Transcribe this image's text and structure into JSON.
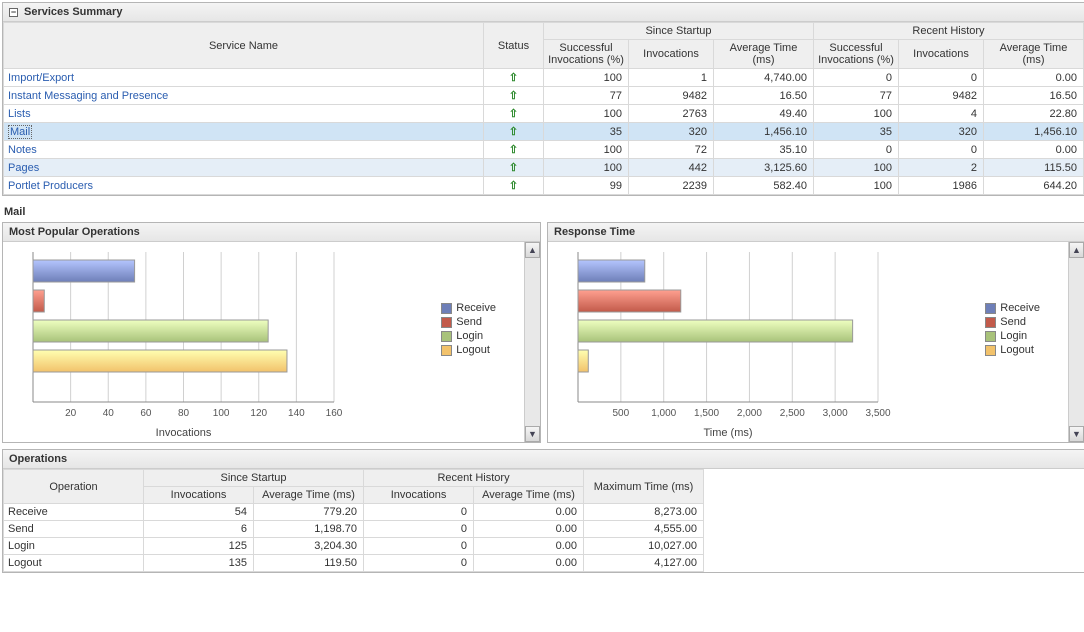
{
  "summary": {
    "title": "Services Summary",
    "columns": {
      "service_name": "Service Name",
      "status": "Status",
      "since_startup": "Since Startup",
      "recent_history": "Recent History",
      "successful_pct": "Successful Invocations (%)",
      "invocations": "Invocations",
      "avg_time": "Average Time (ms)"
    },
    "rows": [
      {
        "name": "Import/Export",
        "highlight": false,
        "ss_pct": "100",
        "ss_inv": "1",
        "ss_avg": "4,740.00",
        "rh_pct": "0",
        "rh_inv": "0",
        "rh_avg": "0.00"
      },
      {
        "name": "Instant Messaging and Presence",
        "highlight": false,
        "ss_pct": "77",
        "ss_inv": "9482",
        "ss_avg": "16.50",
        "rh_pct": "77",
        "rh_inv": "9482",
        "rh_avg": "16.50"
      },
      {
        "name": "Lists",
        "highlight": false,
        "ss_pct": "100",
        "ss_inv": "2763",
        "ss_avg": "49.40",
        "rh_pct": "100",
        "rh_inv": "4",
        "rh_avg": "22.80"
      },
      {
        "name": "Mail",
        "highlight": true,
        "selected": true,
        "ss_pct": "35",
        "ss_inv": "320",
        "ss_avg": "1,456.10",
        "rh_pct": "35",
        "rh_inv": "320",
        "rh_avg": "1,456.10"
      },
      {
        "name": "Notes",
        "highlight": false,
        "ss_pct": "100",
        "ss_inv": "72",
        "ss_avg": "35.10",
        "rh_pct": "0",
        "rh_inv": "0",
        "rh_avg": "0.00"
      },
      {
        "name": "Pages",
        "highlight": true,
        "ss_pct": "100",
        "ss_inv": "442",
        "ss_avg": "3,125.60",
        "rh_pct": "100",
        "rh_inv": "2",
        "rh_avg": "115.50"
      },
      {
        "name": "Portlet Producers",
        "highlight": false,
        "ss_pct": "99",
        "ss_inv": "2239",
        "ss_avg": "582.40",
        "rh_pct": "100",
        "rh_inv": "1986",
        "rh_avg": "644.20"
      }
    ]
  },
  "detail_title": "Mail",
  "colors": {
    "receive": "#6e7fb8",
    "send": "#c25a4a",
    "login": "#a8c27a",
    "logout": "#f2c26b",
    "grid": "#d0d0d0",
    "axis": "#888"
  },
  "legend": [
    {
      "key": "receive",
      "label": "Receive"
    },
    {
      "key": "send",
      "label": "Send"
    },
    {
      "key": "login",
      "label": "Login"
    },
    {
      "key": "logout",
      "label": "Logout"
    }
  ],
  "popular_chart": {
    "title": "Most Popular Operations",
    "axis_label": "Invocations",
    "ticks": [
      "20",
      "40",
      "60",
      "80",
      "100",
      "120",
      "140",
      "160"
    ],
    "tick_values": [
      20,
      40,
      60,
      80,
      100,
      120,
      140,
      160
    ],
    "max": 160,
    "bars": [
      {
        "key": "receive",
        "value": 54
      },
      {
        "key": "send",
        "value": 6
      },
      {
        "key": "login",
        "value": 125
      },
      {
        "key": "logout",
        "value": 135
      }
    ]
  },
  "response_chart": {
    "title": "Response Time",
    "axis_label": "Time (ms)",
    "ticks": [
      "500",
      "1,000",
      "1,500",
      "2,000",
      "2,500",
      "3,000",
      "3,500"
    ],
    "tick_values": [
      500,
      1000,
      1500,
      2000,
      2500,
      3000,
      3500
    ],
    "max": 3500,
    "bars": [
      {
        "key": "receive",
        "value": 779
      },
      {
        "key": "send",
        "value": 1199
      },
      {
        "key": "login",
        "value": 3204
      },
      {
        "key": "logout",
        "value": 120
      }
    ]
  },
  "operations": {
    "title": "Operations",
    "columns": {
      "operation": "Operation",
      "since_startup": "Since Startup",
      "recent_history": "Recent History",
      "invocations": "Invocations",
      "avg_time": "Average Time (ms)",
      "max_time": "Maximum Time (ms)"
    },
    "rows": [
      {
        "name": "Receive",
        "ss_inv": "54",
        "ss_avg": "779.20",
        "rh_inv": "0",
        "rh_avg": "0.00",
        "max": "8,273.00"
      },
      {
        "name": "Send",
        "ss_inv": "6",
        "ss_avg": "1,198.70",
        "rh_inv": "0",
        "rh_avg": "0.00",
        "max": "4,555.00"
      },
      {
        "name": "Login",
        "ss_inv": "125",
        "ss_avg": "3,204.30",
        "rh_inv": "0",
        "rh_avg": "0.00",
        "max": "10,027.00"
      },
      {
        "name": "Logout",
        "ss_inv": "135",
        "ss_avg": "119.50",
        "rh_inv": "0",
        "rh_avg": "0.00",
        "max": "4,127.00"
      }
    ]
  }
}
